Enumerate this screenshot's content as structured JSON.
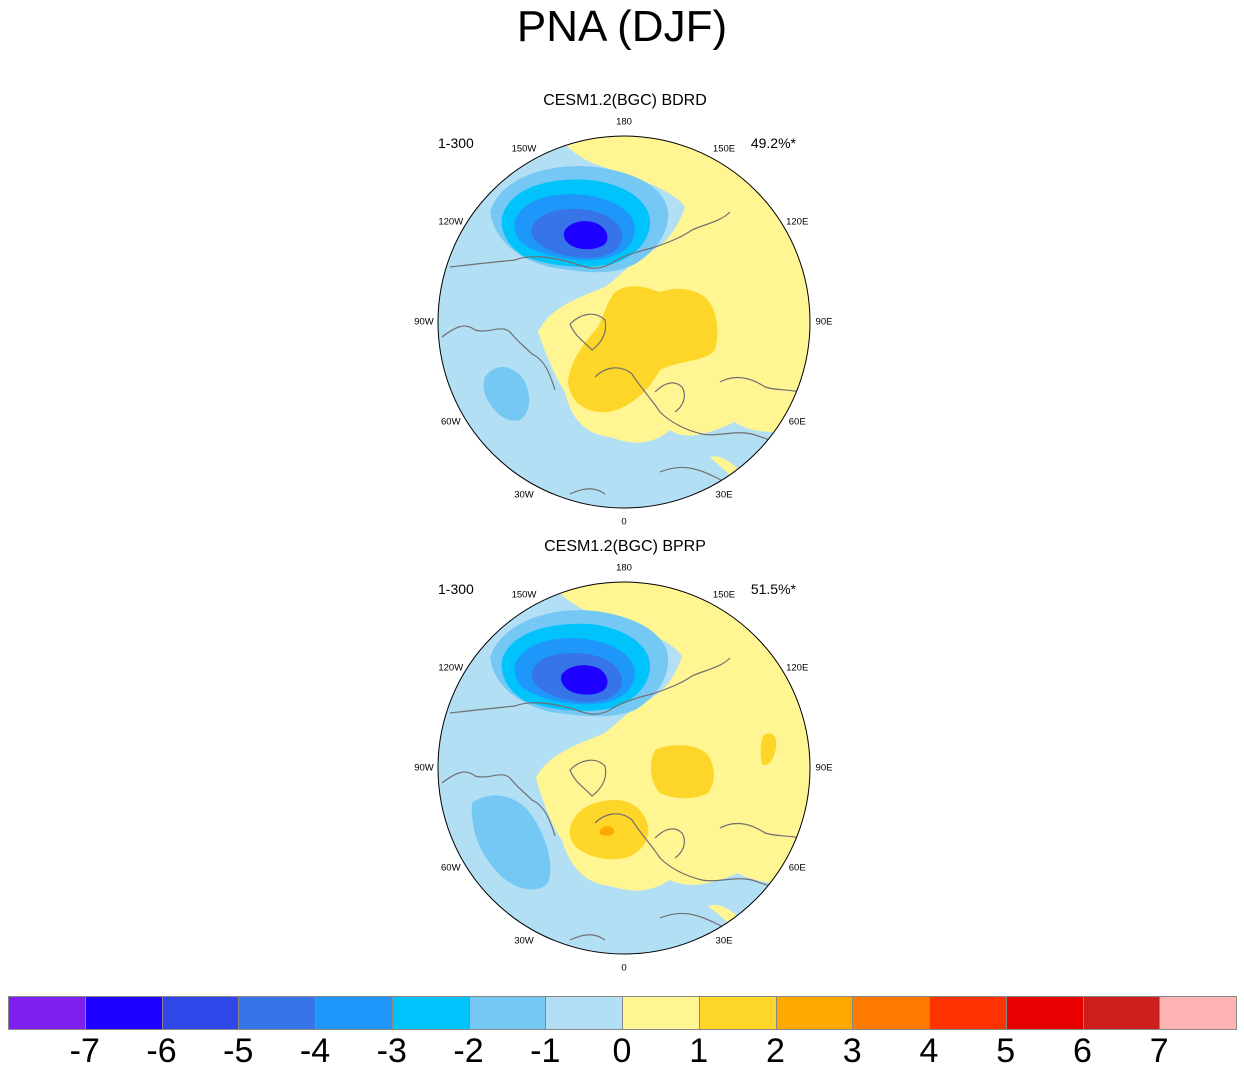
{
  "title": "PNA (DJF)",
  "panels": [
    {
      "title": "CESM1.2(BGC) BDRD",
      "years": "1-300",
      "variance": "49.2%*",
      "lon_labels": [
        "180",
        "150E",
        "120E",
        "90E",
        "60E",
        "30E",
        "0",
        "30W",
        "60W",
        "90W",
        "120W",
        "150W"
      ]
    },
    {
      "title": "CESM1.2(BGC) BPRP",
      "years": "1-300",
      "variance": "51.5%*",
      "lon_labels": [
        "180",
        "150E",
        "120E",
        "90E",
        "60E",
        "30E",
        "0",
        "30W",
        "60W",
        "90W",
        "120W",
        "150W"
      ]
    }
  ],
  "colorbar": {
    "colors": [
      "#7f1ff0",
      "#1d00ff",
      "#2f47e8",
      "#3674e8",
      "#1e96fa",
      "#00c3fc",
      "#74c8f3",
      "#b3dff5",
      "#fff693",
      "#fed62a",
      "#fea800",
      "#ff7c00",
      "#ff3300",
      "#e60000",
      "#cd1e1e",
      "#ffb4b4"
    ],
    "labels": [
      "-7",
      "-6",
      "-5",
      "-4",
      "-3",
      "-2",
      "-1",
      "0",
      "1",
      "2",
      "3",
      "4",
      "5",
      "6",
      "7"
    ]
  },
  "map_colors": {
    "neg1": "#b3dff5",
    "neg2": "#74c8f3",
    "neg3": "#00c3fc",
    "neg4": "#1e96fa",
    "neg5": "#3674e8",
    "neg6": "#1d00ff",
    "pos1": "#fff693",
    "pos2": "#fed62a",
    "pos3": "#fea800",
    "coast": "#707070"
  }
}
